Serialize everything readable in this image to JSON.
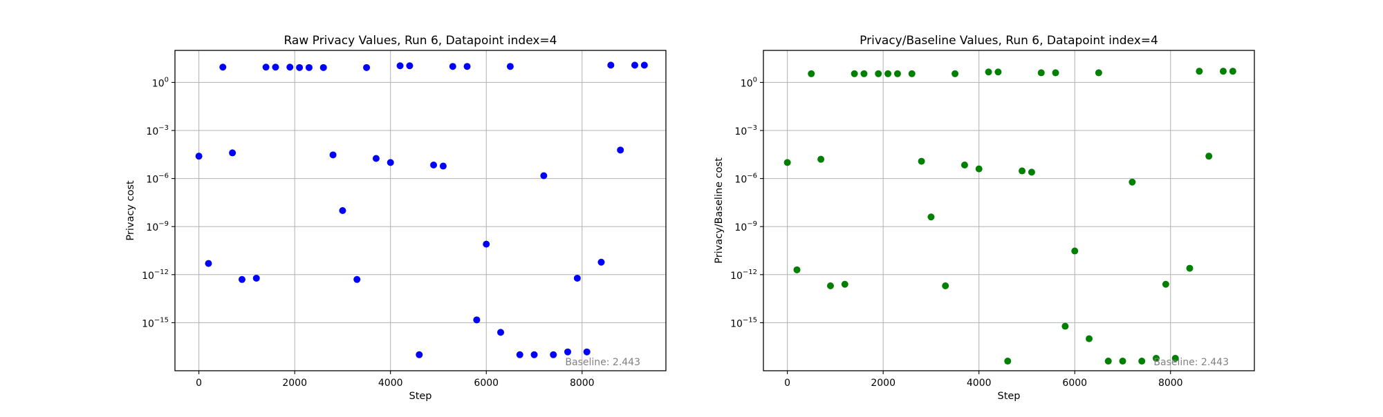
{
  "chart_data": [
    {
      "type": "scatter",
      "title": "Raw Privacy Values, Run 6, Datapoint index=4",
      "xlabel": "Step",
      "ylabel": "Privacy cost",
      "yscale": "log",
      "xlim": [
        -500,
        9750
      ],
      "ylim": [
        1e-18,
        100
      ],
      "grid": true,
      "annotation": "Baseline: 2.443",
      "annotation_placement": "bottom-right",
      "color": "#0000ff",
      "x_ticks": [
        0,
        2000,
        4000,
        6000,
        8000
      ],
      "x_tick_labels": [
        "0",
        "2000",
        "4000",
        "6000",
        "8000"
      ],
      "y_ticks": [
        1,
        0.001,
        1e-06,
        1e-09,
        1e-12,
        1e-15
      ],
      "y_tick_labels": [
        {
          "base": "10",
          "exp": "0"
        },
        {
          "base": "10",
          "exp": "−3"
        },
        {
          "base": "10",
          "exp": "−6"
        },
        {
          "base": "10",
          "exp": "−9"
        },
        {
          "base": "10",
          "exp": "−12"
        },
        {
          "base": "10",
          "exp": "−15"
        }
      ],
      "points": [
        {
          "x": 0,
          "y": 2.5e-05
        },
        {
          "x": 200,
          "y": 5e-12
        },
        {
          "x": 500,
          "y": 9
        },
        {
          "x": 700,
          "y": 4e-05
        },
        {
          "x": 900,
          "y": 5e-13
        },
        {
          "x": 1200,
          "y": 6e-13
        },
        {
          "x": 1400,
          "y": 9
        },
        {
          "x": 1600,
          "y": 9
        },
        {
          "x": 1900,
          "y": 9
        },
        {
          "x": 2100,
          "y": 8.5
        },
        {
          "x": 2300,
          "y": 8.5
        },
        {
          "x": 2600,
          "y": 8.5
        },
        {
          "x": 2800,
          "y": 3e-05
        },
        {
          "x": 3000,
          "y": 1e-08
        },
        {
          "x": 3300,
          "y": 5e-13
        },
        {
          "x": 3500,
          "y": 8.5
        },
        {
          "x": 3700,
          "y": 1.8e-05
        },
        {
          "x": 4000,
          "y": 1e-05
        },
        {
          "x": 4200,
          "y": 11
        },
        {
          "x": 4400,
          "y": 11
        },
        {
          "x": 4600,
          "y": 1e-17
        },
        {
          "x": 4900,
          "y": 7e-06
        },
        {
          "x": 5100,
          "y": 6e-06
        },
        {
          "x": 5300,
          "y": 10
        },
        {
          "x": 5600,
          "y": 10
        },
        {
          "x": 5800,
          "y": 1.5e-15
        },
        {
          "x": 6000,
          "y": 8e-11
        },
        {
          "x": 6300,
          "y": 2.5e-16
        },
        {
          "x": 6500,
          "y": 10
        },
        {
          "x": 6700,
          "y": 1e-17
        },
        {
          "x": 7000,
          "y": 1e-17
        },
        {
          "x": 7200,
          "y": 1.5e-06
        },
        {
          "x": 7400,
          "y": 1e-17
        },
        {
          "x": 7700,
          "y": 1.5e-17
        },
        {
          "x": 7900,
          "y": 6e-13
        },
        {
          "x": 8100,
          "y": 1.5e-17
        },
        {
          "x": 8400,
          "y": 6e-12
        },
        {
          "x": 8600,
          "y": 12
        },
        {
          "x": 8800,
          "y": 6e-05
        },
        {
          "x": 9100,
          "y": 12
        },
        {
          "x": 9300,
          "y": 12
        }
      ]
    },
    {
      "type": "scatter",
      "title": "Privacy/Baseline Values, Run 6, Datapoint index=4",
      "xlabel": "Step",
      "ylabel": "Privacy/Baseline cost",
      "yscale": "log",
      "xlim": [
        -500,
        9750
      ],
      "ylim": [
        1e-18,
        100
      ],
      "grid": true,
      "annotation": "Baseline: 2.443",
      "annotation_placement": "bottom-right",
      "color": "#008000",
      "x_ticks": [
        0,
        2000,
        4000,
        6000,
        8000
      ],
      "x_tick_labels": [
        "0",
        "2000",
        "4000",
        "6000",
        "8000"
      ],
      "y_ticks": [
        1,
        0.001,
        1e-06,
        1e-09,
        1e-12,
        1e-15
      ],
      "y_tick_labels": [
        {
          "base": "10",
          "exp": "0"
        },
        {
          "base": "10",
          "exp": "−3"
        },
        {
          "base": "10",
          "exp": "−6"
        },
        {
          "base": "10",
          "exp": "−9"
        },
        {
          "base": "10",
          "exp": "−12"
        },
        {
          "base": "10",
          "exp": "−15"
        }
      ],
      "points": [
        {
          "x": 0,
          "y": 1e-05
        },
        {
          "x": 200,
          "y": 2e-12
        },
        {
          "x": 500,
          "y": 3.5
        },
        {
          "x": 700,
          "y": 1.6e-05
        },
        {
          "x": 900,
          "y": 2e-13
        },
        {
          "x": 1200,
          "y": 2.5e-13
        },
        {
          "x": 1400,
          "y": 3.5
        },
        {
          "x": 1600,
          "y": 3.5
        },
        {
          "x": 1900,
          "y": 3.5
        },
        {
          "x": 2100,
          "y": 3.5
        },
        {
          "x": 2300,
          "y": 3.5
        },
        {
          "x": 2600,
          "y": 3.5
        },
        {
          "x": 2800,
          "y": 1.2e-05
        },
        {
          "x": 3000,
          "y": 4e-09
        },
        {
          "x": 3300,
          "y": 2e-13
        },
        {
          "x": 3500,
          "y": 3.5
        },
        {
          "x": 3700,
          "y": 7e-06
        },
        {
          "x": 4000,
          "y": 4e-06
        },
        {
          "x": 4200,
          "y": 4.5
        },
        {
          "x": 4400,
          "y": 4.5
        },
        {
          "x": 4600,
          "y": 4e-18
        },
        {
          "x": 4900,
          "y": 3e-06
        },
        {
          "x": 5100,
          "y": 2.5e-06
        },
        {
          "x": 5300,
          "y": 4
        },
        {
          "x": 5600,
          "y": 4
        },
        {
          "x": 5800,
          "y": 6e-16
        },
        {
          "x": 6000,
          "y": 3e-11
        },
        {
          "x": 6300,
          "y": 1e-16
        },
        {
          "x": 6500,
          "y": 4
        },
        {
          "x": 6700,
          "y": 4e-18
        },
        {
          "x": 7000,
          "y": 4e-18
        },
        {
          "x": 7200,
          "y": 6e-07
        },
        {
          "x": 7400,
          "y": 4e-18
        },
        {
          "x": 7700,
          "y": 6e-18
        },
        {
          "x": 7900,
          "y": 2.5e-13
        },
        {
          "x": 8100,
          "y": 6e-18
        },
        {
          "x": 8400,
          "y": 2.5e-12
        },
        {
          "x": 8600,
          "y": 5
        },
        {
          "x": 8800,
          "y": 2.5e-05
        },
        {
          "x": 9100,
          "y": 5
        },
        {
          "x": 9300,
          "y": 5
        }
      ]
    }
  ]
}
